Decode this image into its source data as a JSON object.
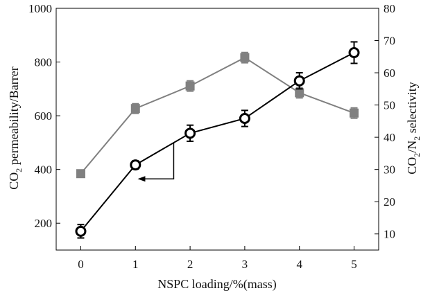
{
  "chart_data": {
    "type": "line",
    "title": "",
    "xlabel": "NSPC loading/%(mass)",
    "ylabel_left": {
      "pre": "CO",
      "sub": "2",
      "post": " permeability/Barrer"
    },
    "ylabel_right": {
      "pre": "CO",
      "sub1": "2",
      "mid": "/N",
      "sub2": "2",
      "post": " selectivity"
    },
    "x": [
      0,
      1,
      2,
      3,
      4,
      5
    ],
    "xlim": [
      -0.45,
      5.45
    ],
    "xticks": [
      "0",
      "1",
      "2",
      "3",
      "4",
      "5"
    ],
    "ylim_left": [
      100,
      1000
    ],
    "yticks_left": [
      "200",
      "400",
      "600",
      "800",
      "1000"
    ],
    "ylim_right": [
      5,
      80
    ],
    "yticks_right": [
      "10",
      "20",
      "30",
      "40",
      "50",
      "60",
      "70",
      "80"
    ],
    "series": [
      {
        "name": "CO2 permeability",
        "axis": "left",
        "marker": "circle",
        "color": "#000000",
        "values": [
          170,
          417,
          535,
          590,
          730,
          835
        ],
        "errors": [
          25,
          15,
          30,
          30,
          30,
          40
        ]
      },
      {
        "name": "CO2/N2 selectivity",
        "axis": "right",
        "marker": "square",
        "color": "#808080",
        "values": [
          28.7,
          48.9,
          55.9,
          64.7,
          53.8,
          47.5
        ],
        "errors": [
          0.8,
          1.5,
          1.6,
          1.6,
          1.6,
          1.6
        ]
      }
    ],
    "annotation": {
      "type": "arrow",
      "points_to_series": "CO2 permeability",
      "meaning": "left axis"
    },
    "colors": {
      "axis": "#000000",
      "selectivity": "#808080",
      "permeability": "#000000"
    }
  }
}
